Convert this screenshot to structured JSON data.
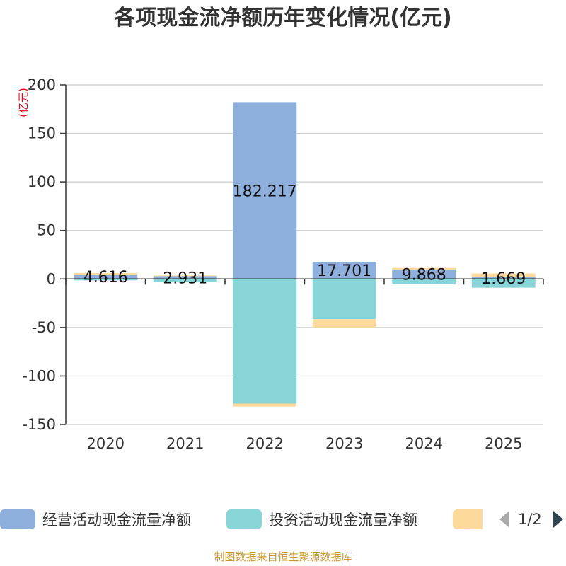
{
  "chart_data": {
    "type": "bar",
    "stacked": true,
    "title": "各项现金流净额历年变化情况(亿元)",
    "unit_label": "(亿元)",
    "categories": [
      "2020",
      "2021",
      "2022",
      "2023",
      "2024",
      "2025"
    ],
    "ylim": [
      -150,
      200
    ],
    "yticks": [
      200,
      150,
      100,
      50,
      0,
      -50,
      -100,
      -150
    ],
    "grid": true,
    "series": [
      {
        "name": "经营活动现金流量净额",
        "color": "#8eaedb",
        "values": [
          4.616,
          2.931,
          182.217,
          17.701,
          9.868,
          1.669
        ]
      },
      {
        "name": "投资活动现金流量净额",
        "color": "#88d5d8",
        "values": [
          -1.5,
          -3.0,
          -128.5,
          -41.5,
          -5.5,
          -9.0
        ]
      },
      {
        "name": "",
        "color": "#fdd99b",
        "values": [
          1.5,
          0.7,
          -3.0,
          -8.5,
          1.5,
          4.0
        ]
      }
    ],
    "data_labels": [
      "4.616",
      "2.931",
      "182.217",
      "17.701",
      "9.868",
      "1.669"
    ]
  },
  "legend": {
    "items": [
      {
        "label": "经营活动现金流量净额",
        "color": "#8eaedb"
      },
      {
        "label": "投资活动现金流量净额",
        "color": "#88d5d8"
      },
      {
        "label": "",
        "color": "#fdd99b"
      }
    ],
    "page_indicator": "1/2",
    "prev_arrow_color": "#aaaaaa",
    "next_arrow_color": "#2f4554"
  },
  "source": "制图数据来自恒生聚源数据库"
}
